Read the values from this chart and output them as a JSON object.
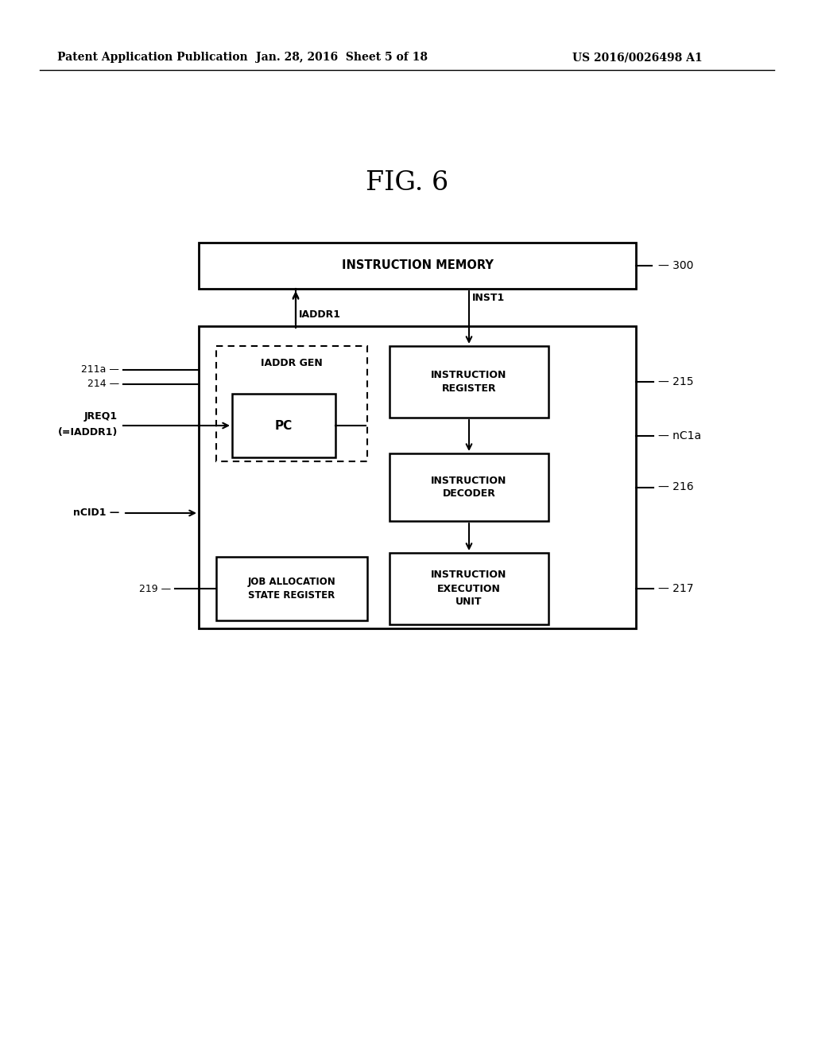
{
  "bg_color": "#ffffff",
  "title": "FIG. 6",
  "header_left": "Patent Application Publication",
  "header_center": "Jan. 28, 2016  Sheet 5 of 18",
  "header_right": "US 2016/0026498 A1",
  "fig_width": 10.24,
  "fig_height": 13.2,
  "dpi": 100
}
